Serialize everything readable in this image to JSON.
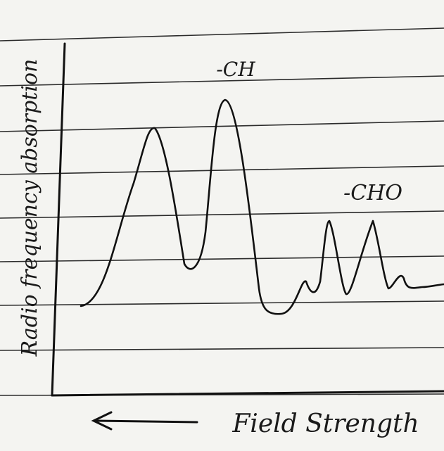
{
  "axes": {
    "y_label": "Radio frequency absorption",
    "x_label": "Field Strength"
  },
  "peaks": {
    "first_label": "-CH",
    "second_label": "-CHO"
  }
}
